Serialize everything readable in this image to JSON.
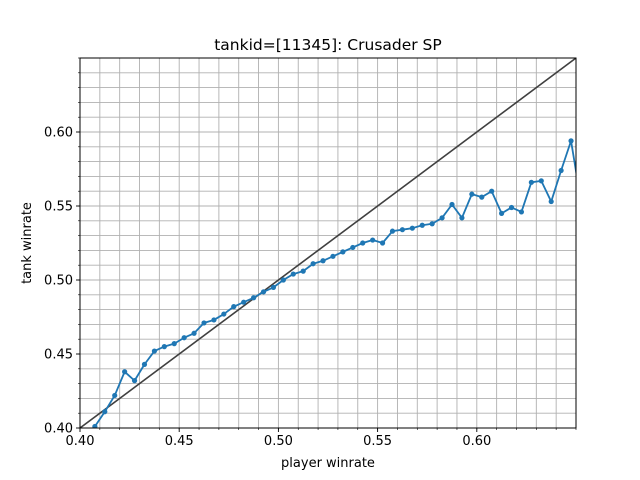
{
  "chart_data": {
    "type": "line",
    "title": "tankid=[11345]: Crusader SP",
    "xlabel": "player winrate",
    "ylabel": "tank winrate",
    "xlim": [
      0.4,
      0.65
    ],
    "ylim": [
      0.4,
      0.65
    ],
    "grid": true,
    "grid_minor_step": 0.01,
    "x_ticks": [
      "0.40",
      "0.45",
      "0.50",
      "0.55",
      "0.60"
    ],
    "y_ticks": [
      "0.40",
      "0.45",
      "0.50",
      "0.55",
      "0.60"
    ],
    "reference_line": {
      "from": [
        0.4,
        0.4
      ],
      "to": [
        0.65,
        0.65
      ],
      "color": "#404040"
    },
    "series": [
      {
        "color": "#1f77b4",
        "x": [
          0.3975,
          0.4025,
          0.4075,
          0.4125,
          0.4175,
          0.4225,
          0.4275,
          0.4325,
          0.4375,
          0.4425,
          0.4475,
          0.4525,
          0.4575,
          0.4625,
          0.4675,
          0.4725,
          0.4775,
          0.4825,
          0.4875,
          0.4925,
          0.4975,
          0.5025,
          0.5075,
          0.5125,
          0.5175,
          0.5225,
          0.5275,
          0.5325,
          0.5375,
          0.5425,
          0.5475,
          0.5525,
          0.5575,
          0.5625,
          0.5675,
          0.5725,
          0.5775,
          0.5825,
          0.5875,
          0.5925,
          0.5975,
          0.6025,
          0.6075,
          0.6125,
          0.6175,
          0.6225,
          0.6275,
          0.6325,
          0.6375,
          0.6425,
          0.6475,
          0.6525
        ],
        "y": [
          0.381,
          0.391,
          0.401,
          0.411,
          0.422,
          0.438,
          0.432,
          0.443,
          0.452,
          0.455,
          0.457,
          0.461,
          0.464,
          0.471,
          0.473,
          0.477,
          0.482,
          0.485,
          0.488,
          0.492,
          0.495,
          0.5,
          0.504,
          0.506,
          0.511,
          0.513,
          0.516,
          0.519,
          0.522,
          0.525,
          0.527,
          0.525,
          0.533,
          0.534,
          0.535,
          0.537,
          0.538,
          0.542,
          0.551,
          0.542,
          0.558,
          0.556,
          0.56,
          0.545,
          0.549,
          0.546,
          0.566,
          0.567,
          0.553,
          0.574,
          0.594,
          0.553
        ]
      }
    ]
  }
}
